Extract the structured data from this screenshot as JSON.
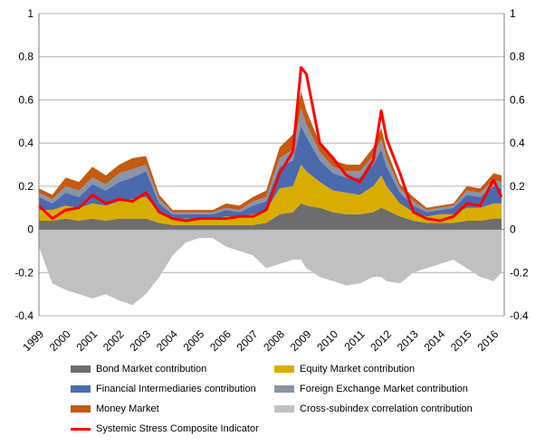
{
  "chart_data": {
    "type": "area",
    "title": "",
    "xlabel": "",
    "ylabel": "",
    "ylim": [
      -0.4,
      1
    ],
    "y_ticks": [
      "1",
      "0.8",
      "0.6",
      "0.4",
      "0.2",
      "0",
      "-0.2",
      "-0.4"
    ],
    "y_tick_values": [
      1,
      0.8,
      0.6,
      0.4,
      0.2,
      0,
      -0.2,
      -0.4
    ],
    "x_tick_labels": [
      "1999",
      "2000",
      "2001",
      "2002",
      "2003",
      "2004",
      "2005",
      "2006",
      "2007",
      "2008",
      "2009",
      "2010",
      "2011",
      "2012",
      "2013",
      "2014",
      "2015",
      "2016"
    ],
    "x_start_year": 1999,
    "x_end_year": 2016.4,
    "grid": true,
    "legend_position": "bottom",
    "x": [
      1999.0,
      1999.5,
      2000.0,
      2000.5,
      2001.0,
      2001.5,
      2002.0,
      2002.5,
      2003.0,
      2003.5,
      2004.0,
      2004.5,
      2005.0,
      2005.5,
      2006.0,
      2006.5,
      2007.0,
      2007.5,
      2008.0,
      2008.5,
      2008.8,
      2009.0,
      2009.5,
      2010.0,
      2010.5,
      2011.0,
      2011.5,
      2011.8,
      2012.0,
      2012.5,
      2013.0,
      2013.5,
      2014.0,
      2014.5,
      2015.0,
      2015.5,
      2016.0,
      2016.3
    ],
    "series": [
      {
        "name": "Bond Market contribution",
        "color": "#6d6d6d",
        "values": [
          0.04,
          0.04,
          0.05,
          0.04,
          0.05,
          0.04,
          0.05,
          0.05,
          0.05,
          0.03,
          0.02,
          0.02,
          0.02,
          0.02,
          0.02,
          0.02,
          0.02,
          0.03,
          0.07,
          0.08,
          0.12,
          0.11,
          0.1,
          0.08,
          0.07,
          0.07,
          0.08,
          0.1,
          0.09,
          0.06,
          0.04,
          0.03,
          0.03,
          0.03,
          0.04,
          0.04,
          0.05,
          0.05
        ]
      },
      {
        "name": "Equity Market contribution",
        "color": "#d9ad00",
        "values": [
          0.05,
          0.05,
          0.06,
          0.06,
          0.07,
          0.07,
          0.08,
          0.09,
          0.1,
          0.05,
          0.03,
          0.03,
          0.03,
          0.03,
          0.04,
          0.04,
          0.05,
          0.06,
          0.12,
          0.12,
          0.18,
          0.16,
          0.12,
          0.1,
          0.1,
          0.09,
          0.12,
          0.15,
          0.11,
          0.06,
          0.04,
          0.03,
          0.04,
          0.04,
          0.06,
          0.06,
          0.07,
          0.07
        ]
      },
      {
        "name": "Financial Intermediaries contribution",
        "color": "#4b6aad",
        "values": [
          0.06,
          0.03,
          0.06,
          0.05,
          0.09,
          0.07,
          0.09,
          0.1,
          0.12,
          0.04,
          0.02,
          0.02,
          0.02,
          0.02,
          0.03,
          0.02,
          0.04,
          0.04,
          0.1,
          0.12,
          0.18,
          0.16,
          0.1,
          0.08,
          0.07,
          0.08,
          0.1,
          0.12,
          0.09,
          0.05,
          0.03,
          0.02,
          0.02,
          0.03,
          0.06,
          0.05,
          0.08,
          0.07
        ]
      },
      {
        "name": "Foreign Exchange Market contribution",
        "color": "#8a94a8",
        "values": [
          0.02,
          0.02,
          0.03,
          0.03,
          0.03,
          0.03,
          0.04,
          0.04,
          0.03,
          0.02,
          0.01,
          0.01,
          0.01,
          0.01,
          0.01,
          0.01,
          0.02,
          0.02,
          0.04,
          0.05,
          0.08,
          0.06,
          0.04,
          0.03,
          0.03,
          0.03,
          0.04,
          0.05,
          0.04,
          0.02,
          0.02,
          0.01,
          0.01,
          0.01,
          0.02,
          0.02,
          0.03,
          0.03
        ]
      },
      {
        "name": "Money Market",
        "color": "#c55a11",
        "values": [
          0.02,
          0.02,
          0.04,
          0.04,
          0.05,
          0.04,
          0.04,
          0.05,
          0.04,
          0.02,
          0.01,
          0.01,
          0.01,
          0.01,
          0.02,
          0.02,
          0.02,
          0.03,
          0.05,
          0.07,
          0.08,
          0.06,
          0.04,
          0.03,
          0.03,
          0.03,
          0.04,
          0.05,
          0.04,
          0.02,
          0.02,
          0.01,
          0.01,
          0.01,
          0.02,
          0.02,
          0.03,
          0.03
        ]
      },
      {
        "name": "Cross-subindex correlation contribution",
        "color": "#c0c0c0",
        "values": [
          -0.08,
          -0.25,
          -0.28,
          -0.3,
          -0.32,
          -0.3,
          -0.33,
          -0.35,
          -0.3,
          -0.22,
          -0.12,
          -0.06,
          -0.04,
          -0.04,
          -0.08,
          -0.1,
          -0.12,
          -0.18,
          -0.16,
          -0.14,
          -0.14,
          -0.18,
          -0.22,
          -0.24,
          -0.26,
          -0.25,
          -0.22,
          -0.22,
          -0.24,
          -0.25,
          -0.2,
          -0.18,
          -0.16,
          -0.14,
          -0.18,
          -0.22,
          -0.24,
          -0.2
        ]
      },
      {
        "name": "Systemic Stress Composite Indicator",
        "color": "#ff0000",
        "kind": "line",
        "values": [
          0.11,
          0.05,
          0.09,
          0.1,
          0.16,
          0.12,
          0.14,
          0.13,
          0.17,
          0.08,
          0.05,
          0.04,
          0.05,
          0.05,
          0.05,
          0.06,
          0.06,
          0.09,
          0.26,
          0.36,
          0.75,
          0.72,
          0.4,
          0.33,
          0.25,
          0.22,
          0.32,
          0.55,
          0.42,
          0.26,
          0.08,
          0.05,
          0.04,
          0.06,
          0.12,
          0.11,
          0.23,
          0.15
        ]
      }
    ]
  },
  "legend": {
    "bond": "Bond Market contribution",
    "equity": "Equity Market contribution",
    "fin": "Financial Intermediaries contribution",
    "fx": "Foreign Exchange Market contribution",
    "money": "Money Market",
    "cross": "Cross-subindex correlation contribution",
    "ciss": "Systemic Stress Composite Indicator"
  }
}
